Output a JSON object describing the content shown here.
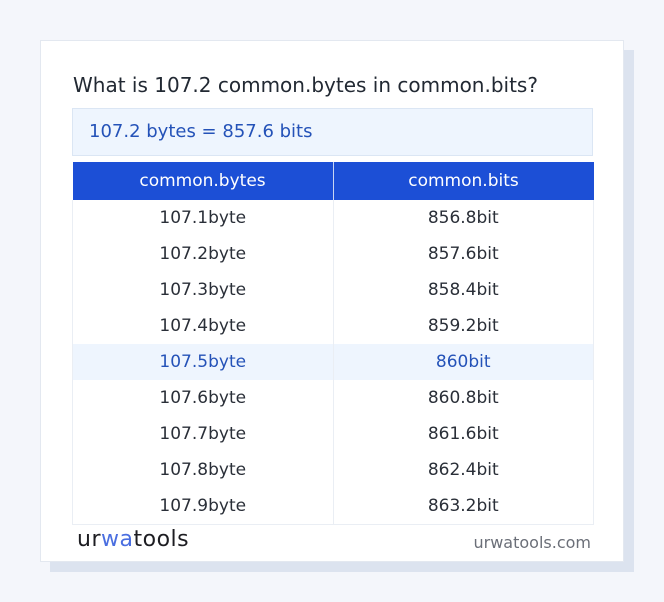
{
  "title": "What is 107.2 common.bytes in common.bits?",
  "result": "107.2 bytes = 857.6 bits",
  "table": {
    "headers": [
      "common.bytes",
      "common.bits"
    ],
    "rows": [
      [
        "107.1byte",
        "856.8bit"
      ],
      [
        "107.2byte",
        "857.6bit"
      ],
      [
        "107.3byte",
        "858.4bit"
      ],
      [
        "107.4byte",
        "859.2bit"
      ],
      [
        "107.5byte",
        "860bit"
      ],
      [
        "107.6byte",
        "860.8bit"
      ],
      [
        "107.7byte",
        "861.6bit"
      ],
      [
        "107.8byte",
        "862.4bit"
      ],
      [
        "107.9byte",
        "863.2bit"
      ]
    ],
    "highlighted_row": 4
  },
  "footer": {
    "logo_a": "ur",
    "logo_b": "wa",
    "logo_c": "tools",
    "site": "urwatools.com"
  },
  "colors": {
    "accent": "#1c4fd6",
    "highlight_bg": "#eef5fe",
    "highlight_text": "#2452b8"
  }
}
